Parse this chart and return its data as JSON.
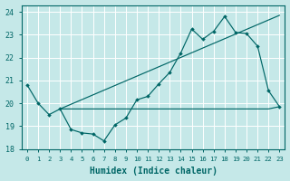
{
  "xlabel": "Humidex (Indice chaleur)",
  "bg_color": "#c5e8e8",
  "grid_color": "#ffffff",
  "line_color": "#006666",
  "xlim": [
    -0.5,
    23.5
  ],
  "ylim": [
    18,
    24.3
  ],
  "yticks": [
    18,
    19,
    20,
    21,
    22,
    23,
    24
  ],
  "xticks": [
    0,
    1,
    2,
    3,
    4,
    5,
    6,
    7,
    8,
    9,
    10,
    11,
    12,
    13,
    14,
    15,
    16,
    17,
    18,
    19,
    20,
    21,
    22,
    23
  ],
  "line1_x": [
    0,
    1,
    2,
    3,
    4,
    5,
    6,
    7,
    8,
    9,
    10,
    11,
    12,
    13,
    14,
    15,
    16,
    17,
    18,
    19,
    20,
    21,
    22,
    23
  ],
  "line1_y": [
    20.8,
    20.0,
    19.5,
    19.75,
    18.85,
    18.7,
    18.65,
    18.35,
    19.05,
    19.35,
    20.15,
    20.3,
    20.85,
    21.35,
    22.2,
    23.25,
    22.8,
    23.15,
    23.8,
    23.1,
    23.05,
    22.5,
    20.55,
    19.85
  ],
  "line2_x": [
    3,
    4,
    5,
    6,
    7,
    8,
    9,
    10,
    11,
    12,
    13,
    14,
    15,
    16,
    17,
    18,
    19,
    20,
    21,
    22,
    23
  ],
  "line2_y": [
    19.75,
    19.75,
    19.75,
    19.75,
    19.75,
    19.75,
    19.75,
    19.75,
    19.75,
    19.75,
    19.75,
    19.75,
    19.75,
    19.75,
    19.75,
    19.75,
    19.75,
    19.75,
    19.75,
    19.75,
    19.85
  ],
  "line3_x": [
    3,
    23
  ],
  "line3_y": [
    19.75,
    23.85
  ],
  "line4_x": [
    3,
    19
  ],
  "line4_y": [
    19.75,
    19.75
  ]
}
